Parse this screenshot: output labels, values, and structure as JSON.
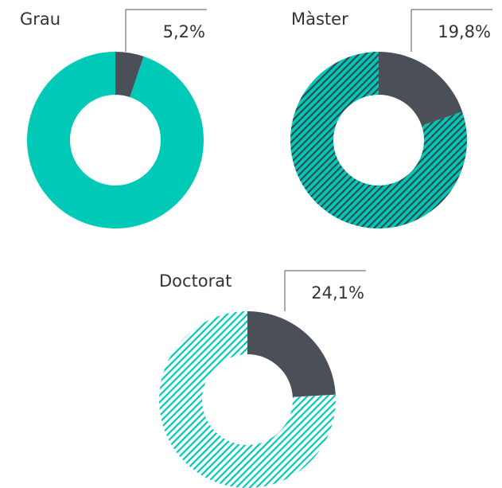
{
  "chart_data": [
    {
      "type": "donut",
      "title": "Grau",
      "values": [
        5.2,
        94.8
      ],
      "value_labels": [
        "5,2%",
        null
      ],
      "colors": [
        "#4a4f58",
        "#00c9b7"
      ],
      "hatch": [
        null,
        null
      ]
    },
    {
      "type": "donut",
      "title": "Màster",
      "values": [
        19.8,
        80.2
      ],
      "value_labels": [
        "19,8%",
        null
      ],
      "colors": [
        "#4a4f58",
        "#00c9b7"
      ],
      "hatch": [
        null,
        "#2d4a4e"
      ]
    },
    {
      "type": "donut",
      "title": "Doctorat",
      "values": [
        24.1,
        75.9
      ],
      "value_labels": [
        "24,1%",
        null
      ],
      "colors": [
        "#4a4f58",
        "#ffffff"
      ],
      "hatch": [
        null,
        "#00c9b7"
      ]
    }
  ]
}
